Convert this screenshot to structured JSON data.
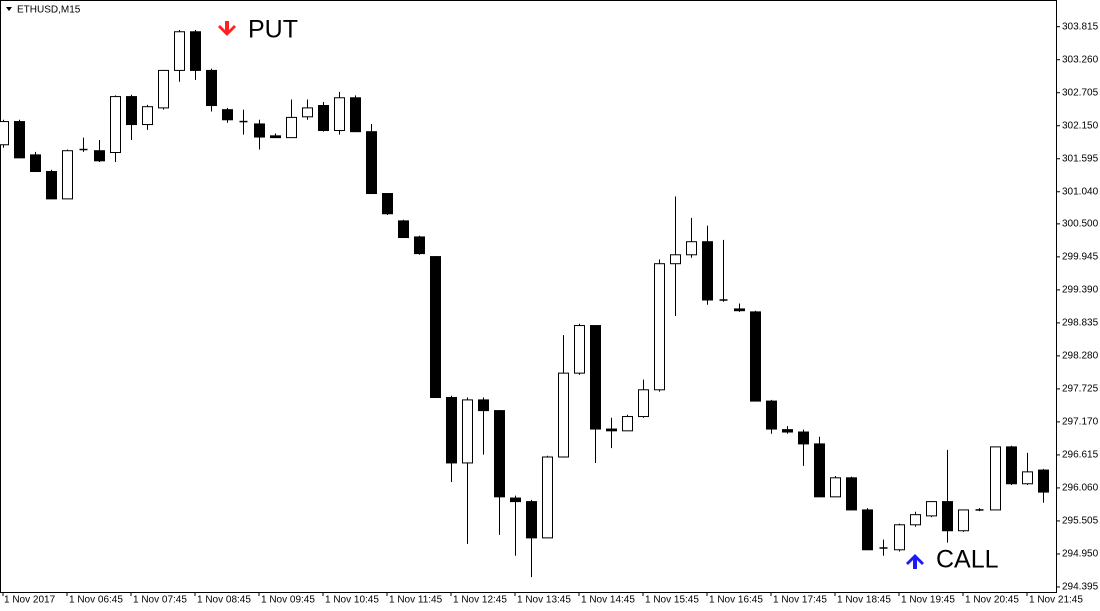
{
  "chart_data": {
    "type": "candlestick",
    "title": "ETHUSD,M15",
    "categories": [
      "1 Nov 2017",
      null,
      null,
      null,
      "1 Nov 06:45",
      null,
      null,
      null,
      "1 Nov 07:45",
      null,
      null,
      null,
      "1 Nov 08:45",
      null,
      null,
      null,
      "1 Nov 09:45",
      null,
      null,
      null,
      "1 Nov 10:45",
      null,
      null,
      null,
      "1 Nov 11:45",
      null,
      null,
      null,
      "1 Nov 12:45",
      null,
      null,
      null,
      "1 Nov 13:45",
      null,
      null,
      null,
      "1 Nov 14:45",
      null,
      null,
      null,
      "1 Nov 15:45",
      null,
      null,
      null,
      "1 Nov 16:45",
      null,
      null,
      null,
      "1 Nov 17:45",
      null,
      null,
      null,
      "1 Nov 18:45",
      null,
      null,
      null,
      "1 Nov 19:45",
      null,
      null,
      null,
      "1 Nov 20:45",
      null,
      null,
      null,
      "1 Nov 21:45",
      null
    ],
    "open": [
      301.83,
      302.22,
      301.66,
      301.38,
      300.92,
      301.75,
      301.73,
      301.7,
      302.64,
      302.17,
      302.45,
      303.08,
      303.73,
      303.08,
      302.42,
      302.22,
      302.18,
      301.98,
      301.95,
      302.3,
      302.49,
      302.07,
      302.62,
      302.05,
      301.01,
      300.55,
      300.28,
      299.95,
      297.58,
      296.48,
      297.54,
      297.36,
      295.89,
      295.83,
      295.22,
      296.58,
      297.99,
      298.79,
      297.05,
      297.02,
      297.26,
      297.71,
      299.83,
      299.98,
      300.2,
      299.22,
      299.07,
      299.02,
      297.52,
      297.04,
      297.0,
      296.8,
      295.91,
      296.23,
      295.69,
      295.05,
      295.02,
      295.44,
      295.59,
      295.83,
      295.34,
      295.69,
      295.69,
      296.75,
      296.13,
      296.36
    ],
    "high": [
      302.25,
      302.25,
      301.71,
      301.41,
      301.75,
      301.95,
      301.91,
      302.66,
      302.67,
      302.5,
      303.09,
      303.76,
      303.76,
      303.11,
      302.45,
      302.42,
      302.25,
      302.02,
      302.59,
      302.59,
      302.55,
      302.72,
      302.66,
      302.18,
      301.01,
      300.57,
      300.3,
      299.96,
      297.61,
      297.58,
      297.58,
      297.37,
      295.93,
      295.86,
      296.6,
      298.63,
      298.82,
      298.8,
      297.24,
      297.29,
      297.88,
      299.9,
      300.96,
      300.6,
      300.47,
      300.23,
      299.16,
      299.04,
      297.54,
      297.1,
      297.04,
      296.92,
      296.26,
      296.25,
      295.72,
      295.19,
      295.46,
      295.66,
      295.83,
      296.7,
      295.69,
      295.72,
      296.75,
      296.77,
      296.65,
      296.38
    ],
    "low": [
      301.78,
      301.61,
      301.38,
      300.92,
      300.92,
      301.71,
      301.54,
      301.54,
      301.91,
      302.08,
      302.42,
      302.89,
      302.92,
      302.39,
      302.2,
      302.0,
      301.75,
      301.95,
      301.95,
      302.25,
      302.05,
      302.0,
      302.05,
      301.01,
      300.65,
      300.27,
      299.98,
      297.58,
      296.16,
      295.12,
      296.62,
      295.27,
      294.92,
      294.56,
      295.22,
      296.57,
      297.96,
      296.48,
      296.73,
      297.02,
      297.24,
      297.68,
      298.95,
      299.93,
      299.14,
      299.19,
      299.02,
      297.52,
      296.97,
      296.97,
      296.43,
      295.91,
      295.91,
      295.69,
      295.02,
      294.92,
      294.99,
      295.41,
      295.57,
      295.14,
      295.32,
      295.67,
      295.69,
      296.11,
      296.11,
      295.81
    ],
    "close": [
      302.22,
      301.61,
      301.38,
      300.92,
      301.73,
      301.73,
      301.56,
      302.64,
      302.17,
      302.47,
      303.08,
      303.73,
      303.08,
      302.49,
      302.25,
      302.22,
      301.96,
      301.95,
      302.29,
      302.45,
      302.07,
      302.62,
      302.05,
      301.01,
      300.67,
      300.27,
      300.0,
      297.58,
      296.48,
      297.54,
      297.36,
      295.91,
      295.83,
      295.22,
      296.58,
      297.99,
      298.79,
      297.05,
      297.02,
      297.26,
      297.71,
      299.83,
      299.98,
      300.2,
      299.22,
      299.21,
      299.04,
      297.52,
      297.05,
      297.0,
      296.8,
      295.91,
      296.23,
      295.69,
      295.02,
      295.07,
      295.44,
      295.61,
      295.83,
      295.34,
      295.69,
      295.67,
      296.75,
      296.13,
      296.33,
      295.99
    ],
    "ylim": [
      294.31,
      304.18
    ],
    "yticks": [
      303.815,
      {
        "value": 303.26,
        "label": "303.260"
      },
      302.705,
      {
        "value": 302.15,
        "label": "302.150"
      },
      301.595,
      {
        "value": 301.04,
        "label": "301.040"
      },
      {
        "value": 300.5,
        "label": "300.500"
      },
      299.945,
      {
        "value": 299.39,
        "label": "299.390"
      },
      298.835,
      {
        "value": 298.28,
        "label": "298.280"
      },
      297.725,
      {
        "value": 297.17,
        "label": "297.170"
      },
      296.615,
      {
        "value": 296.06,
        "label": "296.060"
      },
      295.505,
      {
        "value": 294.95,
        "label": "294.950"
      },
      294.395
    ],
    "annotations": [
      {
        "text": "PUT",
        "color": "#ff2020",
        "direction": "down"
      },
      {
        "text": "CALL",
        "color": "#1a1aff",
        "direction": "up"
      }
    ]
  }
}
